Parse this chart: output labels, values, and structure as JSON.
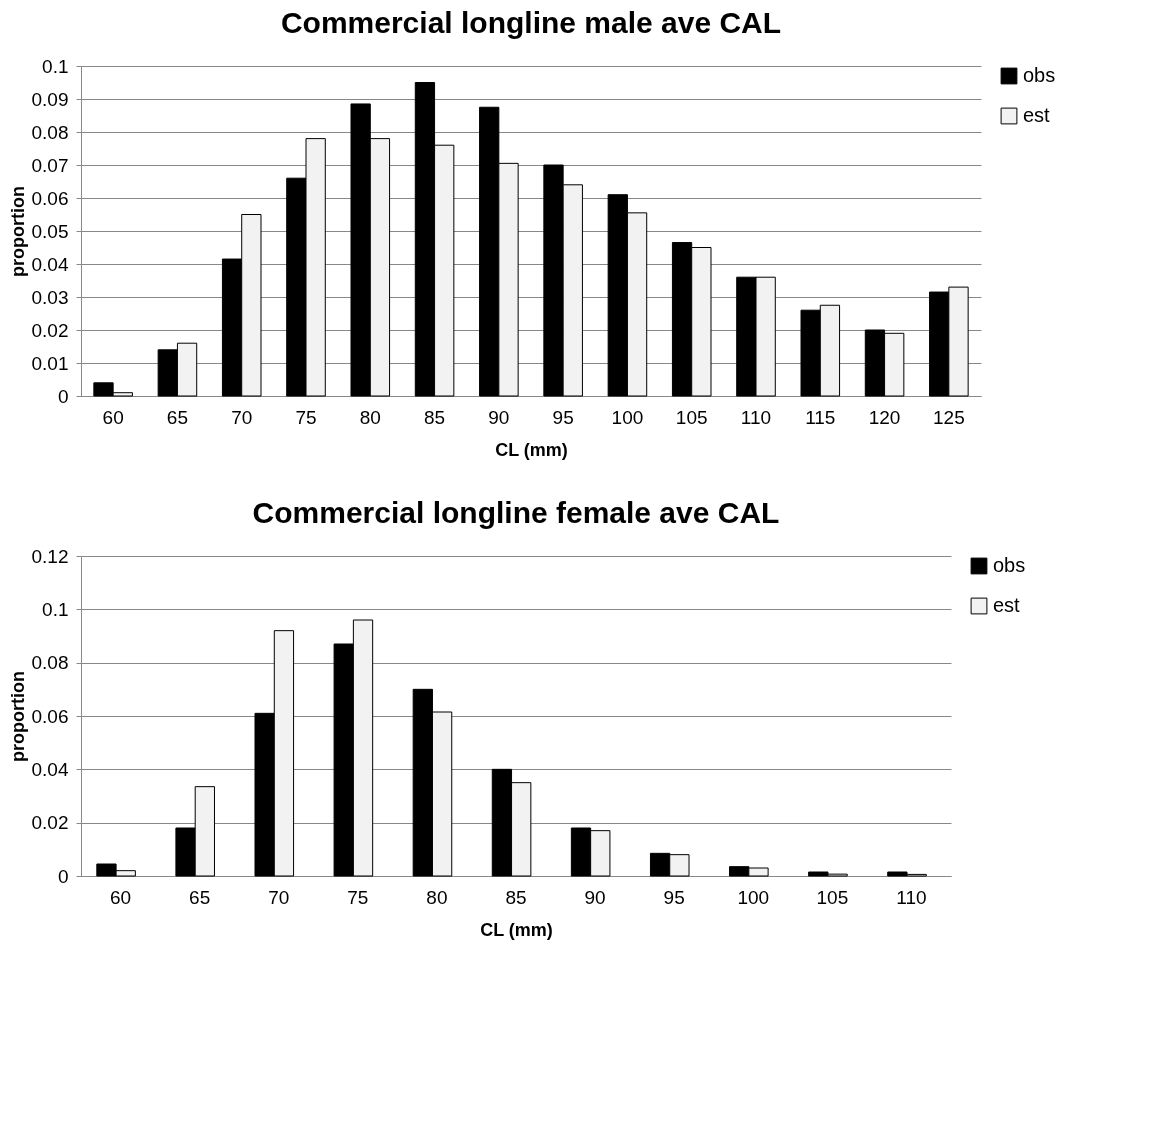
{
  "chart_data": [
    {
      "type": "bar",
      "title": "Commercial longline male ave CAL",
      "xlabel": "CL (mm)",
      "ylabel": "proportion",
      "categories": [
        "60",
        "65",
        "70",
        "75",
        "80",
        "85",
        "90",
        "95",
        "100",
        "105",
        "110",
        "115",
        "120",
        "125"
      ],
      "series": [
        {
          "name": "obs",
          "color": "#000000",
          "values": [
            0.004,
            0.014,
            0.0415,
            0.066,
            0.0885,
            0.095,
            0.0875,
            0.07,
            0.061,
            0.0465,
            0.036,
            0.026,
            0.02,
            0.0315
          ]
        },
        {
          "name": "est",
          "color": "#f2f2f2",
          "values": [
            0.001,
            0.016,
            0.055,
            0.078,
            0.078,
            0.076,
            0.0705,
            0.064,
            0.0555,
            0.045,
            0.036,
            0.0275,
            0.019,
            0.033
          ]
        }
      ],
      "ylim": [
        0,
        0.1
      ],
      "yticks": [
        0,
        0.01,
        0.02,
        0.03,
        0.04,
        0.05,
        0.06,
        0.07,
        0.08,
        0.09,
        0.1
      ],
      "grid": "y",
      "legend": "right"
    },
    {
      "type": "bar",
      "title": "Commercial longline female ave CAL",
      "xlabel": "CL (mm)",
      "ylabel": "proportion",
      "categories": [
        "60",
        "65",
        "70",
        "75",
        "80",
        "85",
        "90",
        "95",
        "100",
        "105",
        "110"
      ],
      "series": [
        {
          "name": "obs",
          "color": "#000000",
          "values": [
            0.0045,
            0.018,
            0.061,
            0.087,
            0.07,
            0.04,
            0.018,
            0.0085,
            0.0035,
            0.0015,
            0.0015
          ]
        },
        {
          "name": "est",
          "color": "#f2f2f2",
          "values": [
            0.002,
            0.0335,
            0.092,
            0.096,
            0.0615,
            0.035,
            0.017,
            0.008,
            0.003,
            0.0007,
            0.0006
          ]
        }
      ],
      "ylim": [
        0,
        0.12
      ],
      "yticks": [
        0,
        0.02,
        0.04,
        0.06,
        0.08,
        0.1,
        0.12
      ],
      "grid": "y",
      "legend": "right"
    }
  ]
}
